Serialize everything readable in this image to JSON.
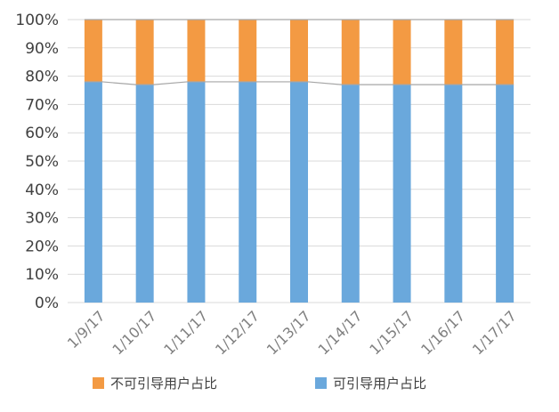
{
  "chart_data": {
    "type": "bar",
    "stacked": true,
    "percent_stacked": true,
    "categories": [
      "1/9/17",
      "1/10/17",
      "1/11/17",
      "1/12/17",
      "1/13/17",
      "1/14/17",
      "1/15/17",
      "1/16/17",
      "1/17/17"
    ],
    "series": [
      {
        "name": "可引导用户占比",
        "color": "#6aa8dc",
        "values": [
          78,
          77,
          78,
          78,
          78,
          77,
          77,
          77,
          77
        ]
      },
      {
        "name": "不可引导用户占比",
        "color": "#f39a43",
        "values": [
          22,
          23,
          22,
          22,
          22,
          23,
          23,
          23,
          23
        ]
      }
    ],
    "ylim": [
      0,
      100
    ],
    "yticks": [
      "0%",
      "10%",
      "20%",
      "30%",
      "40%",
      "50%",
      "60%",
      "70%",
      "80%",
      "90%",
      "100%"
    ],
    "title": "",
    "xlabel": "",
    "ylabel": "",
    "grid": true,
    "series_lines": true,
    "legend_position": "bottom",
    "legend_order": [
      "不可引导用户占比",
      "可引导用户占比"
    ]
  }
}
